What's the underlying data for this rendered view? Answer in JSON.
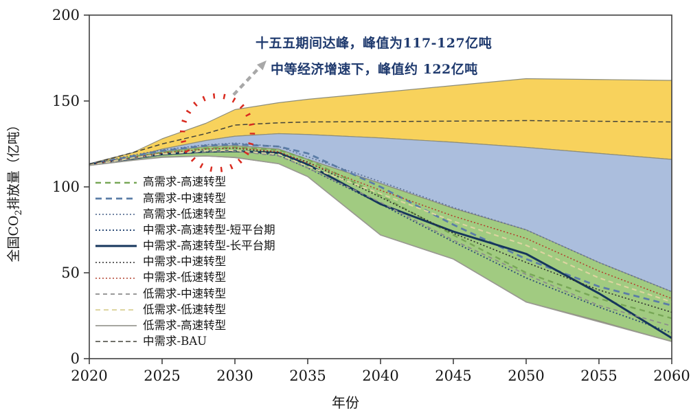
{
  "annotation": {
    "line1": "十五五期间达峰，峰值为117-127亿吨",
    "line2": "中等经济增速下，峰值约 122亿吨",
    "text_color": "#1f3a6e"
  },
  "axes": {
    "xlabel": "年份",
    "ylabel_pre": "全国CO",
    "ylabel_sub": "2",
    "ylabel_post": "排放量（亿吨）"
  },
  "legend": {
    "items": [
      {
        "label": "高需求-高速转型",
        "color": "#78a757",
        "dash": "8 6",
        "width": 2.4
      },
      {
        "label": "高需求-中速转型",
        "color": "#5b7da7",
        "dash": "9 6",
        "width": 2.8
      },
      {
        "label": "高需求-低速转型",
        "color": "#5d7396",
        "dash": "2 3",
        "width": 1.7
      },
      {
        "label": "中需求-高速转型-短平台期",
        "color": "#2e4d78",
        "dash": "2 3",
        "width": 1.9
      },
      {
        "label": "中需求-高速转型-长平台期",
        "color": "#16365c",
        "dash": "",
        "width": 3.0
      },
      {
        "label": "中需求-中速转型",
        "color": "#2b2b2b",
        "dash": "2 3",
        "width": 1.6
      },
      {
        "label": "中需求-低速转型",
        "color": "#b2402e",
        "dash": "2 3",
        "width": 1.6
      },
      {
        "label": "低需求-中速转型",
        "color": "#8b8b8b",
        "dash": "6 5",
        "width": 1.7
      },
      {
        "label": "低需求-低速转型",
        "color": "#ddd5a0",
        "dash": "7 5",
        "width": 2.1
      },
      {
        "label": "低需求-高速转型",
        "color": "#9a9a92",
        "dash": "",
        "width": 1.7
      },
      {
        "label": "中需求-BAU",
        "color": "#42423a",
        "dash": "7 4",
        "width": 1.5
      }
    ]
  },
  "chart_data": {
    "type": "line",
    "title": "",
    "xlabel": "年份",
    "ylabel": "全国CO2排放量（亿吨）",
    "xlim": [
      2020,
      2060
    ],
    "ylim": [
      0,
      200
    ],
    "xticks": [
      2020,
      2025,
      2030,
      2035,
      2040,
      2045,
      2050,
      2055,
      2060
    ],
    "yticks": [
      0,
      50,
      100,
      150,
      200
    ],
    "grid": false,
    "legend_position": "inside-left-middle",
    "frame_color": "#3f3f3f",
    "band_edge_color": "#8d8d7a",
    "x": [
      2020,
      2023,
      2025,
      2028,
      2030,
      2033,
      2035,
      2040,
      2045,
      2050,
      2055,
      2060
    ],
    "bands": [
      {
        "name": "BAU范围(黄)",
        "fill": "#f8d25c",
        "top": [
          [
            2020,
            113.5
          ],
          [
            2023,
            120
          ],
          [
            2025,
            128
          ],
          [
            2028,
            137
          ],
          [
            2030,
            145
          ],
          [
            2033,
            149
          ],
          [
            2035,
            151
          ],
          [
            2040,
            155
          ],
          [
            2045,
            159
          ],
          [
            2050,
            163
          ],
          [
            2055,
            162.5
          ],
          [
            2060,
            162
          ]
        ],
        "bottom": [
          [
            2020,
            113
          ],
          [
            2023,
            117.5
          ],
          [
            2025,
            122
          ],
          [
            2028,
            127
          ],
          [
            2030,
            129.5
          ],
          [
            2033,
            131
          ],
          [
            2035,
            130.5
          ],
          [
            2040,
            128.5
          ],
          [
            2045,
            126
          ],
          [
            2050,
            123
          ],
          [
            2055,
            119.5
          ],
          [
            2060,
            116
          ]
        ]
      },
      {
        "name": "低速转型范围(蓝)",
        "fill": "#abbedd",
        "top": [
          [
            2020,
            113
          ],
          [
            2023,
            117.5
          ],
          [
            2025,
            122
          ],
          [
            2028,
            127
          ],
          [
            2030,
            129.5
          ],
          [
            2033,
            131
          ],
          [
            2035,
            130.5
          ],
          [
            2040,
            128.5
          ],
          [
            2045,
            126
          ],
          [
            2050,
            123
          ],
          [
            2055,
            119.5
          ],
          [
            2060,
            116
          ]
        ],
        "bottom": [
          [
            2020,
            113.2
          ],
          [
            2023,
            117
          ],
          [
            2025,
            120.5
          ],
          [
            2028,
            123.5
          ],
          [
            2030,
            124
          ],
          [
            2033,
            122
          ],
          [
            2035,
            116
          ],
          [
            2040,
            102
          ],
          [
            2045,
            87.5
          ],
          [
            2050,
            75
          ],
          [
            2055,
            56
          ],
          [
            2060,
            39
          ]
        ]
      },
      {
        "name": "高速中速转型范围(绿)",
        "fill": "#a1cb81",
        "top": [
          [
            2020,
            113.2
          ],
          [
            2023,
            117
          ],
          [
            2025,
            120.5
          ],
          [
            2028,
            123.5
          ],
          [
            2030,
            124
          ],
          [
            2033,
            122
          ],
          [
            2035,
            116
          ],
          [
            2040,
            102
          ],
          [
            2045,
            87.5
          ],
          [
            2050,
            75
          ],
          [
            2055,
            56
          ],
          [
            2060,
            39
          ]
        ],
        "bottom": [
          [
            2020,
            112.5
          ],
          [
            2023,
            115.5
          ],
          [
            2025,
            117.5
          ],
          [
            2028,
            118
          ],
          [
            2030,
            117
          ],
          [
            2033,
            113.5
          ],
          [
            2035,
            106
          ],
          [
            2040,
            72
          ],
          [
            2045,
            58
          ],
          [
            2050,
            33
          ],
          [
            2055,
            22
          ],
          [
            2060,
            10
          ]
        ]
      }
    ],
    "series": [
      {
        "name": "高需求-高速转型",
        "color": "#78a757",
        "dash": "8 6",
        "width": 2.4,
        "values": [
          113,
          117.5,
          120,
          122.5,
          123,
          121.5,
          116,
          95,
          72,
          50,
          35,
          23.5
        ]
      },
      {
        "name": "高需求-中速转型",
        "color": "#5b7da7",
        "dash": "9 6",
        "width": 2.8,
        "values": [
          113.2,
          118,
          121,
          124,
          124.8,
          123.5,
          119.5,
          100,
          78,
          58,
          42,
          31
        ]
      },
      {
        "name": "高需求-低速转型",
        "color": "#5d7396",
        "dash": "2 3",
        "width": 1.7,
        "values": [
          113.4,
          118.5,
          121.5,
          124.5,
          125.5,
          123.5,
          117.5,
          103,
          88,
          75,
          56,
          39
        ]
      },
      {
        "name": "中需求-高速转型-短平台期",
        "color": "#2e4d78",
        "dash": "2 3",
        "width": 1.9,
        "values": [
          113,
          116.5,
          119,
          120.8,
          121,
          118.5,
          111,
          90,
          68,
          47,
          30,
          15
        ]
      },
      {
        "name": "中需求-高速转型-长平台期",
        "color": "#16365c",
        "dash": "",
        "width": 3.0,
        "values": [
          113,
          116.5,
          119,
          120.5,
          120.8,
          119.8,
          113,
          90,
          74,
          61,
          38,
          12
        ]
      },
      {
        "name": "中需求-中速转型",
        "color": "#2b2b2b",
        "dash": "2 3",
        "width": 1.6,
        "values": [
          113,
          117,
          119.5,
          122,
          122.5,
          120,
          114.5,
          94,
          73,
          56,
          40,
          27
        ]
      },
      {
        "name": "中需求-低速转型",
        "color": "#b2402e",
        "dash": "2 3",
        "width": 1.6,
        "values": [
          113,
          117,
          119.8,
          122,
          122.8,
          120.5,
          114,
          98,
          83,
          70,
          51,
          35
        ]
      },
      {
        "name": "低需求-中速转型",
        "color": "#8b8b8b",
        "dash": "6 5",
        "width": 1.7,
        "values": [
          112.8,
          116.5,
          119,
          120.5,
          120.8,
          118,
          111,
          91,
          69,
          49,
          31,
          19
        ]
      },
      {
        "name": "低需求-低速转型",
        "color": "#ddd5a0",
        "dash": "7 5",
        "width": 2.1,
        "values": [
          112.8,
          116.8,
          119.2,
          121,
          121.2,
          119,
          112,
          96,
          80,
          66,
          47,
          33
        ]
      },
      {
        "name": "低需求-高速转型",
        "color": "#9a9a92",
        "dash": "",
        "width": 1.7,
        "values": [
          112.5,
          115.5,
          117.2,
          118,
          117.2,
          113.5,
          106,
          72,
          58,
          33,
          21.5,
          10
        ]
      },
      {
        "name": "中需求-BAU",
        "color": "#42423a",
        "dash": "7 4",
        "width": 1.5,
        "values": [
          113.2,
          120,
          125,
          131,
          136,
          137.3,
          137.8,
          138,
          138.3,
          138.6,
          138.2,
          137.8
        ]
      }
    ],
    "highlight_circle": {
      "center_year": 2028.8,
      "center_value": 131.5,
      "rx_years": 2.4,
      "ry_value": 21.5,
      "color": "#d92b20"
    },
    "annotation_arrow": {
      "color": "#a8a8a8"
    }
  }
}
